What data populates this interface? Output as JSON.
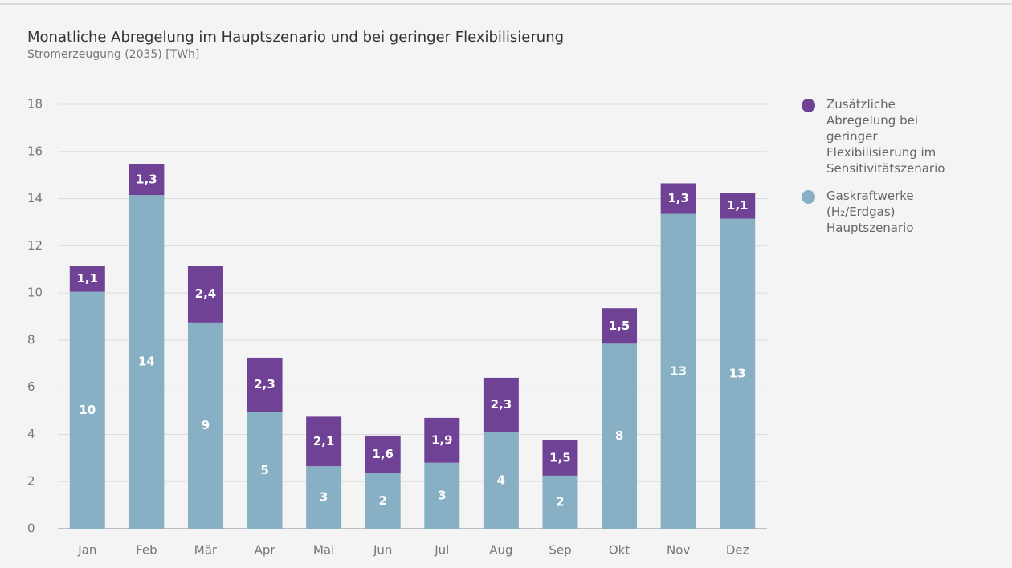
{
  "chart_data": {
    "type": "stacked_bar",
    "title": "Monatliche Abregelung im Hauptszenario und bei geringer Flexibilisierung",
    "subtitle": "Stromerzeugung (2035) [TWh]",
    "categories": [
      "Jan",
      "Feb",
      "Mär",
      "Apr",
      "Mai",
      "Jun",
      "Jul",
      "Aug",
      "Sep",
      "Okt",
      "Nov",
      "Dez"
    ],
    "series": [
      {
        "name": "Gaskraftwerke (H₂/Erdgas) Hauptszenario",
        "color": "#88b0c4",
        "values": [
          10.05,
          14.15,
          8.75,
          4.95,
          2.65,
          2.35,
          2.8,
          4.1,
          2.25,
          7.85,
          13.35,
          13.15
        ],
        "value_labels": [
          "10",
          "14",
          "9",
          "5",
          "3",
          "2",
          "3",
          "4",
          "2",
          "8",
          "13",
          "13"
        ]
      },
      {
        "name": "Zusätzliche Abregelung bei geringer Flexibilisierung im Sensitivitätszenario",
        "color": "#6f4296",
        "values": [
          1.1,
          1.3,
          2.4,
          2.3,
          2.1,
          1.6,
          1.9,
          2.3,
          1.5,
          1.5,
          1.3,
          1.1
        ],
        "value_labels": [
          "1,1",
          "1,3",
          "2,4",
          "2,3",
          "2,1",
          "1,6",
          "1,9",
          "2,3",
          "1,5",
          "1,5",
          "1,3",
          "1,1"
        ]
      }
    ],
    "ylim": [
      0,
      18
    ],
    "yticks": [
      0,
      2,
      4,
      6,
      8,
      10,
      12,
      14,
      16,
      18
    ],
    "grid": true,
    "legend": "right"
  }
}
